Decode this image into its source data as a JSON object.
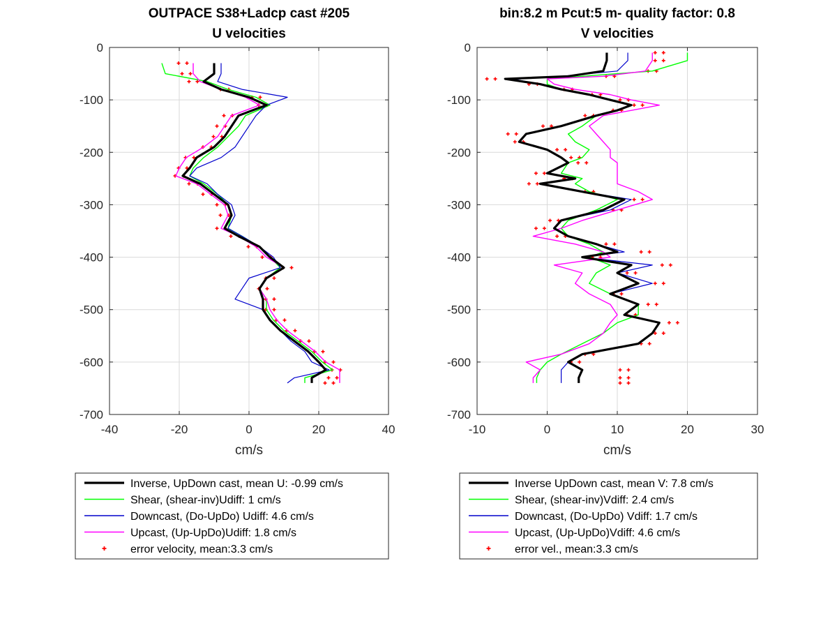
{
  "figure": {
    "left_title_line1": "OUTPACE S38+Ladcp cast #205",
    "left_title_line2": "U velocities",
    "right_title_line1": "bin:8.2 m  Pcut:5 m- quality factor:  0.8",
    "right_title_line2": "V velocities"
  },
  "colors": {
    "inverse": "#000000",
    "shear": "#00ff00",
    "downcast": "#0000cc",
    "upcast": "#ff00ff",
    "error": "#ff0000",
    "grid": "#d9d9d9"
  },
  "chart_data": [
    {
      "type": "line",
      "title": "OUTPACE S38+Ladcp cast #205 / U velocities",
      "xlabel": "cm/s",
      "ylabel": "",
      "xlim": [
        -40,
        40
      ],
      "ylim": [
        -700,
        0
      ],
      "xticks": [
        "-40",
        "-20",
        "0",
        "20",
        "40"
      ],
      "yticks": [
        "0",
        "-100",
        "-200",
        "-300",
        "-400",
        "-500",
        "-600",
        "-700"
      ],
      "grid": true,
      "legend_position": "below",
      "depth": [
        -30,
        -50,
        -65,
        -80,
        -95,
        -110,
        -130,
        -150,
        -170,
        -190,
        -210,
        -230,
        -245,
        -260,
        -280,
        -300,
        -320,
        -345,
        -360,
        -380,
        -400,
        -420,
        -440,
        -460,
        -480,
        -500,
        -520,
        -540,
        -560,
        -580,
        -600,
        -615,
        -630,
        -640
      ],
      "series": [
        {
          "name": "Inverse, UpDown cast, mean U:  -0.99 cm/s",
          "values": [
            -10,
            -10,
            -13,
            -8,
            0,
            5,
            -3,
            -5,
            -7,
            -10,
            -15,
            -17,
            -19,
            -14,
            -10,
            -6,
            -5,
            -7,
            -3,
            3,
            6,
            10,
            5,
            3,
            4,
            4,
            6,
            9,
            13,
            17,
            20,
            22,
            18,
            18
          ]
        },
        {
          "name": "Shear, (shear-inv)Udiff:  1 cm/s",
          "values": [
            -25,
            -24,
            -12,
            -6,
            2,
            6,
            -1,
            -3,
            -6,
            -9,
            -13,
            -16,
            -17,
            -13,
            -9,
            -6,
            -5,
            -6,
            -2,
            3,
            6,
            9,
            5,
            3,
            5,
            5,
            7,
            10,
            14,
            18,
            21,
            24,
            16,
            16
          ]
        },
        {
          "name": "Downcast, (Do-UpDo) Udiff:  4.6 cm/s",
          "values": [
            -8,
            -8,
            -9,
            -2,
            11,
            5,
            2,
            0,
            -2,
            -4,
            -8,
            -15,
            -17,
            -12,
            -9,
            -5,
            -4,
            -6,
            -2,
            3,
            7,
            9,
            0,
            -2,
            -4,
            4,
            6,
            9,
            12,
            16,
            18,
            23,
            13,
            11
          ]
        },
        {
          "name": "Upcast, (Up-UpDo)Udiff:  1.8 cm/s",
          "values": [
            -16,
            -16,
            -14,
            -8,
            -1,
            3,
            -5,
            -7,
            -9,
            -13,
            -18,
            -20,
            -21,
            -15,
            -11,
            -7,
            -6,
            -8,
            -3,
            2,
            5,
            10,
            5,
            3,
            5,
            6,
            8,
            11,
            15,
            19,
            22,
            26,
            26,
            26
          ]
        },
        {
          "name": "error velocity, mean:3.3 cm/s",
          "values": [
            -19,
            -18,
            -16,
            -7,
            2,
            4,
            -6,
            -8,
            -9,
            -12,
            -17,
            -19,
            -20,
            -16,
            -12,
            -8,
            -7,
            -8,
            -4,
            1,
            5,
            11,
            6,
            4,
            6,
            6,
            9,
            12,
            16,
            20,
            23,
            25,
            24,
            23
          ]
        }
      ]
    },
    {
      "type": "line",
      "title": "bin:8.2 m  Pcut:5 m- quality factor:  0.8 / V velocities",
      "xlabel": "cm/s",
      "ylabel": "",
      "xlim": [
        -10,
        30
      ],
      "ylim": [
        -700,
        0
      ],
      "xticks": [
        "-10",
        "0",
        "10",
        "20",
        "30"
      ],
      "yticks": [
        "0",
        "-100",
        "-200",
        "-300",
        "-400",
        "-500",
        "-600",
        "-700"
      ],
      "grid": true,
      "legend_position": "below",
      "depth": [
        -10,
        -25,
        -45,
        -55,
        -60,
        -70,
        -80,
        -90,
        -100,
        -110,
        -120,
        -130,
        -150,
        -165,
        -180,
        -195,
        -210,
        -220,
        -240,
        -250,
        -260,
        -275,
        -290,
        -310,
        -330,
        -345,
        -360,
        -375,
        -390,
        -400,
        -415,
        -430,
        -450,
        -470,
        -490,
        -510,
        -525,
        -545,
        -565,
        -585,
        -600,
        -615,
        -630,
        -640
      ],
      "series": [
        {
          "name": "Inverse UpDown cast, mean V:  7.8 cm/s",
          "values": [
            8.5,
            8.5,
            8,
            3,
            -6,
            -1,
            2,
            6,
            9,
            12,
            10,
            7,
            2,
            -3,
            -4,
            0,
            2,
            3,
            0,
            4,
            -1,
            5,
            11,
            8,
            2,
            1,
            3,
            7,
            10,
            5,
            12,
            10,
            13,
            9,
            13,
            11,
            16,
            15,
            13,
            5,
            3,
            5,
            4.5,
            4.5
          ]
        },
        {
          "name": "Shear, (shear-inv)Vdiff:  2.4 cm/s",
          "values": [
            20,
            20,
            15,
            5,
            0,
            0,
            2,
            6,
            9,
            12,
            10,
            7,
            5,
            3,
            4,
            6,
            5,
            3,
            2,
            5,
            4,
            6,
            10,
            7,
            3,
            2,
            3,
            6,
            8,
            6,
            9,
            7,
            6,
            9,
            13,
            13,
            10,
            8,
            5,
            2,
            0,
            -1,
            -1.5,
            -1.5
          ]
        },
        {
          "name": "Downcast, (Do-UpDo) Vdiff:  1.7 cm/s",
          "values": [
            11.5,
            11.5,
            10,
            2,
            -5,
            -1,
            2,
            6,
            9,
            12,
            10,
            7,
            2,
            -3,
            -4,
            0,
            2,
            3,
            0,
            4,
            -1,
            5,
            12,
            9,
            2,
            1,
            3,
            7,
            11,
            5,
            15,
            10,
            15,
            9,
            13,
            11,
            16,
            15,
            13,
            5,
            3,
            2,
            2,
            2
          ]
        },
        {
          "name": "Upcast, (Up-UpDo)Vdiff:  4.6 cm/s",
          "values": [
            15,
            15,
            14,
            8,
            0,
            1,
            4,
            9,
            12,
            16,
            12,
            8,
            6,
            7,
            8,
            9,
            9,
            10,
            10,
            10,
            10,
            13,
            15,
            10,
            5,
            2,
            -2,
            4,
            8,
            9,
            1,
            5,
            4,
            6,
            9,
            10,
            9,
            8,
            6,
            2,
            -3,
            -1,
            -2,
            -2
          ]
        },
        {
          "name": "error vel., mean:3.3 cm/s",
          "values": [
            16,
            16,
            15,
            9,
            -8,
            -2,
            3,
            7,
            11,
            13,
            10,
            6,
            0,
            -5,
            -4,
            2,
            4,
            5,
            -1,
            3,
            -2,
            6,
            13,
            10,
            1,
            -1,
            2,
            9,
            14,
            7,
            17,
            12,
            16,
            10,
            15,
            12,
            18,
            16,
            14,
            6,
            4,
            11,
            11,
            11
          ]
        }
      ]
    }
  ],
  "legends": [
    {
      "items": [
        {
          "label": "Inverse, UpDown cast, mean U:  -0.99 cm/s",
          "color": "#000000",
          "style": "thick"
        },
        {
          "label": "Shear, (shear-inv)Udiff:  1 cm/s",
          "color": "#00ff00",
          "style": "line"
        },
        {
          "label": "Downcast, (Do-UpDo) Udiff:  4.6 cm/s",
          "color": "#0000cc",
          "style": "line"
        },
        {
          "label": "Upcast, (Up-UpDo)Udiff:  1.8 cm/s",
          "color": "#ff00ff",
          "style": "line"
        },
        {
          "label": "error velocity, mean:3.3 cm/s",
          "color": "#ff0000",
          "style": "marker"
        }
      ]
    },
    {
      "items": [
        {
          "label": "Inverse UpDown cast, mean V:  7.8 cm/s",
          "color": "#000000",
          "style": "thick"
        },
        {
          "label": "Shear, (shear-inv)Vdiff:  2.4 cm/s",
          "color": "#00ff00",
          "style": "line"
        },
        {
          "label": "Downcast, (Do-UpDo) Vdiff:  1.7 cm/s",
          "color": "#0000cc",
          "style": "line"
        },
        {
          "label": "Upcast, (Up-UpDo)Vdiff:  4.6 cm/s",
          "color": "#ff00ff",
          "style": "line"
        },
        {
          "label": "error vel., mean:3.3 cm/s",
          "color": "#ff0000",
          "style": "marker"
        }
      ]
    }
  ]
}
